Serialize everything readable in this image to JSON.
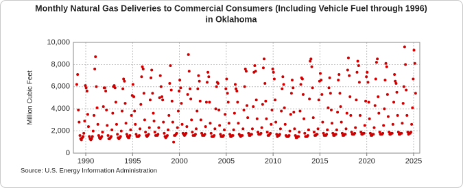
{
  "chart_data": {
    "type": "scatter",
    "title": [
      "Monthly Natural Gas Deliveries to Commercial Consumers (Including Vehicle Fuel through 1996)",
      "in Oklahoma"
    ],
    "y_label": "Million Cubic Feet",
    "source": "Source: U.S. Energy Information Administration",
    "color": "#cc0000",
    "grid": true,
    "xlim": [
      1988.68,
      2025.66
    ],
    "xticks": [
      1990,
      1995,
      2000,
      2005,
      2010,
      2015,
      2020,
      2025
    ],
    "ylim": [
      0,
      10000
    ],
    "yticks": [
      0,
      {
        "value": 2000,
        "label": "2,000"
      },
      {
        "value": 4000,
        "label": "4,000"
      },
      {
        "value": 6000,
        "label": "6,000"
      },
      {
        "value": 8000,
        "label": "8,000"
      },
      {
        "value": 10000,
        "label": "10,000"
      }
    ],
    "x": [
      1989.04,
      1989.13,
      1989.21,
      1989.29,
      1989.38,
      1989.46,
      1989.54,
      1989.63,
      1989.71,
      1989.79,
      1989.88,
      1989.96,
      1990.04,
      1990.13,
      1990.21,
      1990.29,
      1990.38,
      1990.46,
      1990.54,
      1990.63,
      1990.71,
      1990.79,
      1990.88,
      1990.96,
      1991.04,
      1991.13,
      1991.21,
      1991.29,
      1991.38,
      1991.46,
      1991.54,
      1991.63,
      1991.71,
      1991.79,
      1991.88,
      1991.96,
      1992.04,
      1992.13,
      1992.21,
      1992.29,
      1992.38,
      1992.46,
      1992.54,
      1992.63,
      1992.71,
      1992.79,
      1992.88,
      1992.96,
      1993.04,
      1993.13,
      1993.21,
      1993.29,
      1993.38,
      1993.46,
      1993.54,
      1993.63,
      1993.71,
      1993.79,
      1993.88,
      1993.96,
      1994.04,
      1994.13,
      1994.21,
      1994.29,
      1994.38,
      1994.46,
      1994.54,
      1994.63,
      1994.71,
      1994.79,
      1994.88,
      1994.96,
      1995.04,
      1995.13,
      1995.21,
      1995.29,
      1995.38,
      1995.46,
      1995.54,
      1995.63,
      1995.71,
      1995.79,
      1995.88,
      1995.96,
      1996.04,
      1996.13,
      1996.21,
      1996.29,
      1996.38,
      1996.46,
      1996.54,
      1996.63,
      1996.71,
      1996.79,
      1996.88,
      1996.96,
      1997.04,
      1997.13,
      1997.21,
      1997.29,
      1997.38,
      1997.46,
      1997.54,
      1997.63,
      1997.71,
      1997.79,
      1997.88,
      1997.96,
      1998.04,
      1998.13,
      1998.21,
      1998.29,
      1998.38,
      1998.46,
      1998.54,
      1998.63,
      1998.71,
      1998.79,
      1998.88,
      1998.96,
      1999.04,
      1999.13,
      1999.21,
      1999.29,
      1999.38,
      1999.46,
      1999.54,
      1999.63,
      1999.71,
      1999.79,
      1999.88,
      1999.96,
      2000.04,
      2000.13,
      2000.21,
      2000.29,
      2000.38,
      2000.46,
      2000.54,
      2000.63,
      2000.71,
      2000.79,
      2000.88,
      2000.96,
      2001.04,
      2001.13,
      2001.21,
      2001.29,
      2001.38,
      2001.46,
      2001.54,
      2001.63,
      2001.71,
      2001.79,
      2001.88,
      2001.96,
      2002.04,
      2002.13,
      2002.21,
      2002.29,
      2002.38,
      2002.46,
      2002.54,
      2002.63,
      2002.71,
      2002.79,
      2002.88,
      2002.96,
      2003.04,
      2003.13,
      2003.21,
      2003.29,
      2003.38,
      2003.46,
      2003.54,
      2003.63,
      2003.71,
      2003.79,
      2003.88,
      2003.96,
      2004.04,
      2004.13,
      2004.21,
      2004.29,
      2004.38,
      2004.46,
      2004.54,
      2004.63,
      2004.71,
      2004.79,
      2004.88,
      2004.96,
      2005.04,
      2005.13,
      2005.21,
      2005.29,
      2005.38,
      2005.46,
      2005.54,
      2005.63,
      2005.71,
      2005.79,
      2005.88,
      2005.96,
      2006.04,
      2006.13,
      2006.21,
      2006.29,
      2006.38,
      2006.46,
      2006.54,
      2006.63,
      2006.71,
      2006.79,
      2006.88,
      2006.96,
      2007.04,
      2007.13,
      2007.21,
      2007.29,
      2007.38,
      2007.46,
      2007.54,
      2007.63,
      2007.71,
      2007.79,
      2007.88,
      2007.96,
      2008.04,
      2008.13,
      2008.21,
      2008.29,
      2008.38,
      2008.46,
      2008.54,
      2008.63,
      2008.71,
      2008.79,
      2008.88,
      2008.96,
      2009.04,
      2009.13,
      2009.21,
      2009.29,
      2009.38,
      2009.46,
      2009.54,
      2009.63,
      2009.71,
      2009.79,
      2009.88,
      2009.96,
      2010.04,
      2010.13,
      2010.21,
      2010.29,
      2010.38,
      2010.46,
      2010.54,
      2010.63,
      2010.71,
      2010.79,
      2010.88,
      2010.96,
      2011.04,
      2011.13,
      2011.21,
      2011.29,
      2011.38,
      2011.46,
      2011.54,
      2011.63,
      2011.71,
      2011.79,
      2011.88,
      2011.96,
      2012.04,
      2012.13,
      2012.21,
      2012.29,
      2012.38,
      2012.46,
      2012.54,
      2012.63,
      2012.71,
      2012.79,
      2012.88,
      2012.96,
      2013.04,
      2013.13,
      2013.21,
      2013.29,
      2013.38,
      2013.46,
      2013.54,
      2013.63,
      2013.71,
      2013.79,
      2013.88,
      2013.96,
      2014.04,
      2014.13,
      2014.21,
      2014.29,
      2014.38,
      2014.46,
      2014.54,
      2014.63,
      2014.71,
      2014.79,
      2014.88,
      2014.96,
      2015.04,
      2015.13,
      2015.21,
      2015.29,
      2015.38,
      2015.46,
      2015.54,
      2015.63,
      2015.71,
      2015.79,
      2015.88,
      2015.96,
      2016.04,
      2016.13,
      2016.21,
      2016.29,
      2016.38,
      2016.46,
      2016.54,
      2016.63,
      2016.71,
      2016.79,
      2016.88,
      2016.96,
      2017.04,
      2017.13,
      2017.21,
      2017.29,
      2017.38,
      2017.46,
      2017.54,
      2017.63,
      2017.71,
      2017.79,
      2017.88,
      2017.96,
      2018.04,
      2018.13,
      2018.21,
      2018.29,
      2018.38,
      2018.46,
      2018.54,
      2018.63,
      2018.71,
      2018.79,
      2018.88,
      2018.96,
      2019.04,
      2019.13,
      2019.21,
      2019.29,
      2019.38,
      2019.46,
      2019.54,
      2019.63,
      2019.71,
      2019.79,
      2019.88,
      2019.96,
      2020.04,
      2020.13,
      2020.21,
      2020.29,
      2020.38,
      2020.46,
      2020.54,
      2020.63,
      2020.71,
      2020.79,
      2020.88,
      2020.96,
      2021.04,
      2021.13,
      2021.21,
      2021.29,
      2021.38,
      2021.46,
      2021.54,
      2021.63,
      2021.71,
      2021.79,
      2021.88,
      2021.96,
      2022.04,
      2022.13,
      2022.21,
      2022.29,
      2022.38,
      2022.46,
      2022.54,
      2022.63,
      2022.71,
      2022.79,
      2022.88,
      2022.96,
      2023.04,
      2023.13,
      2023.21,
      2023.29,
      2023.38,
      2023.46,
      2023.54,
      2023.63,
      2023.71,
      2023.79,
      2023.88,
      2023.96,
      2024.04,
      2024.13,
      2024.21,
      2024.29,
      2024.38,
      2024.46,
      2024.54,
      2024.63,
      2024.71,
      2024.79,
      2024.88,
      2024.96,
      2025.04,
      2025.13,
      2025.21
    ],
    "values": [
      6200,
      7100,
      3900,
      2800,
      1600,
      1300,
      1200,
      1400,
      1500,
      1800,
      2900,
      6100,
      5900,
      5600,
      3500,
      2400,
      1500,
      1300,
      1200,
      1300,
      1500,
      2000,
      3400,
      7600,
      8700,
      6000,
      4100,
      2600,
      1600,
      1400,
      1300,
      1400,
      1500,
      1900,
      4200,
      5900,
      5900,
      5600,
      3900,
      2500,
      1600,
      1300,
      1300,
      1400,
      1500,
      2100,
      3600,
      6000,
      6100,
      5900,
      4600,
      2600,
      1700,
      1400,
      1300,
      1400,
      1500,
      2000,
      3800,
      5800,
      6700,
      6500,
      4500,
      2700,
      1700,
      1500,
      1400,
      1400,
      1600,
      2100,
      3400,
      5200,
      6200,
      5100,
      3800,
      2600,
      1700,
      1500,
      1500,
      1500,
      1600,
      2200,
      4400,
      6900,
      7800,
      7600,
      5400,
      3000,
      1900,
      1600,
      1500,
      1600,
      1700,
      2300,
      4800,
      6800,
      7500,
      5400,
      3600,
      2900,
      1900,
      1600,
      1600,
      1600,
      1700,
      2300,
      5000,
      7000,
      6000,
      5100,
      4800,
      2800,
      1800,
      1500,
      1400,
      1500,
      1600,
      2100,
      3400,
      6300,
      7900,
      5700,
      4700,
      2800,
      1000,
      1600,
      1600,
      1700,
      1800,
      2300,
      3800,
      5600,
      6600,
      5900,
      4500,
      2600,
      1800,
      1700,
      1600,
      1700,
      1800,
      2400,
      5300,
      8900,
      7400,
      5800,
      4900,
      3000,
      1900,
      1600,
      1600,
      1600,
      1700,
      2200,
      3800,
      5800,
      7000,
      6500,
      4700,
      3000,
      1800,
      1600,
      1600,
      1600,
      1700,
      2400,
      4600,
      6400,
      7300,
      6900,
      4600,
      2700,
      1800,
      1500,
      1500,
      1500,
      1600,
      2200,
      4000,
      6000,
      6400,
      6300,
      3900,
      2500,
      1700,
      1500,
      1500,
      1500,
      1600,
      2100,
      3500,
      5800,
      6700,
      5400,
      4600,
      2700,
      1700,
      1500,
      1500,
      1600,
      1600,
      2100,
      3600,
      6200,
      5800,
      5600,
      4600,
      2700,
      1700,
      1600,
      1500,
      1600,
      1600,
      2200,
      3900,
      6000,
      7600,
      7400,
      4300,
      3200,
      1800,
      1600,
      1600,
      1700,
      1700,
      2200,
      4200,
      7300,
      7900,
      7400,
      4800,
      3100,
      1900,
      1700,
      1700,
      1700,
      1800,
      2300,
      4400,
      7700,
      8500,
      6300,
      4700,
      3100,
      1900,
      1600,
      1600,
      1700,
      1800,
      2600,
      3900,
      7600,
      7300,
      6700,
      4800,
      2800,
      1700,
      1500,
      1600,
      1600,
      1700,
      2200,
      3800,
      5800,
      6900,
      6200,
      4100,
      2600,
      1600,
      1500,
      1500,
      1500,
      1600,
      2000,
      3500,
      5400,
      6600,
      5900,
      3700,
      2200,
      1600,
      1400,
      1400,
      1500,
      1500,
      1900,
      3800,
      6200,
      6800,
      6700,
      5300,
      3100,
      1800,
      1500,
      1500,
      1500,
      1600,
      2100,
      4900,
      8300,
      8500,
      7800,
      5900,
      3200,
      1900,
      1600,
      1600,
      1700,
      1700,
      2200,
      4800,
      6500,
      7200,
      6600,
      5300,
      2800,
      1800,
      1600,
      1600,
      1600,
      1700,
      2100,
      4100,
      5900,
      6800,
      5400,
      3900,
      2700,
      1800,
      1600,
      1600,
      1700,
      1700,
      2100,
      3700,
      6600,
      7100,
      5400,
      4200,
      2800,
      1800,
      1600,
      1600,
      1700,
      1700,
      2200,
      3600,
      7500,
      8600,
      7000,
      5100,
      3400,
      1900,
      1700,
      1700,
      1700,
      1800,
      2300,
      4800,
      7300,
      8300,
      7900,
      6400,
      3400,
      1900,
      1700,
      1700,
      1800,
      1800,
      2500,
      4700,
      6900,
      7300,
      6400,
      4600,
      3100,
      1800,
      1600,
      1600,
      1700,
      1700,
      2300,
      4300,
      6700,
      8200,
      8500,
      5100,
      3600,
      1900,
      1700,
      1700,
      1700,
      1800,
      2500,
      4000,
      6600,
      8100,
      7800,
      5300,
      3300,
      1900,
      1700,
      1700,
      1800,
      1800,
      2600,
      4600,
      7100,
      6500,
      6300,
      5500,
      3400,
      1900,
      1700,
      1700,
      1800,
      1800,
      2700,
      4500,
      6000,
      9600,
      8000,
      5700,
      3400,
      1900,
      1700,
      1800,
      1800,
      1900,
      2600,
      4100,
      6700,
      9300,
      8100,
      5400
    ]
  }
}
